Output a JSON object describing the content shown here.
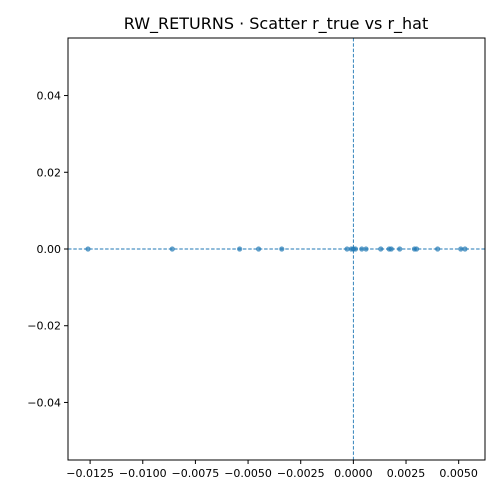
{
  "chart_data": {
    "type": "scatter",
    "title": "RW_RETURNS · Scatter r_true vs r_hat",
    "xlabel": "",
    "ylabel": "",
    "xlim": [
      -0.01355,
      0.00625
    ],
    "ylim": [
      -0.055,
      0.055
    ],
    "grid": false,
    "x_ticks": [
      -0.0125,
      -0.01,
      -0.0075,
      -0.005,
      -0.0025,
      0.0,
      0.0025,
      0.005
    ],
    "x_tick_labels": [
      "−0.0125",
      "−0.0100",
      "−0.0075",
      "−0.0050",
      "−0.0025",
      "0.0000",
      "0.0025",
      "0.0050"
    ],
    "y_ticks": [
      -0.04,
      -0.02,
      0.0,
      0.02,
      0.04
    ],
    "y_tick_labels": [
      "−0.04",
      "−0.02",
      "0.00",
      "0.02",
      "0.04"
    ],
    "reference_lines": {
      "x": 0,
      "y": 0,
      "style": "dashed"
    },
    "point_color": "#1f77b4",
    "line_color": "#1f77b4",
    "points": [
      {
        "x": -0.0126,
        "y": 0
      },
      {
        "x": -0.0086,
        "y": 0
      },
      {
        "x": -0.0054,
        "y": 0
      },
      {
        "x": -0.0045,
        "y": 0
      },
      {
        "x": -0.0034,
        "y": 0
      },
      {
        "x": -0.0003,
        "y": 0
      },
      {
        "x": -0.0001,
        "y": 0
      },
      {
        "x": 0.0,
        "y": 0
      },
      {
        "x": 0.0001,
        "y": 0
      },
      {
        "x": 0.0004,
        "y": 0
      },
      {
        "x": 0.0006,
        "y": 0
      },
      {
        "x": 0.0013,
        "y": 0
      },
      {
        "x": 0.0017,
        "y": 0
      },
      {
        "x": 0.0018,
        "y": 0
      },
      {
        "x": 0.0022,
        "y": 0
      },
      {
        "x": 0.0029,
        "y": 0
      },
      {
        "x": 0.003,
        "y": 0
      },
      {
        "x": 0.004,
        "y": 0
      },
      {
        "x": 0.0051,
        "y": 0
      },
      {
        "x": 0.0053,
        "y": 0
      }
    ]
  }
}
